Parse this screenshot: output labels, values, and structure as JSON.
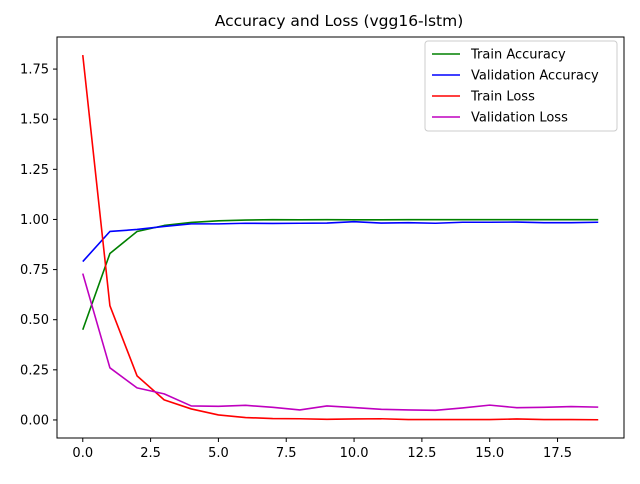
{
  "chart_data": {
    "type": "line",
    "title": "Accuracy and Loss (vgg16-lstm)",
    "xlabel": "",
    "ylabel": "",
    "xlim": [
      -0.95,
      19.95
    ],
    "ylim": [
      -0.09,
      1.91
    ],
    "grid": false,
    "legend_position": "top-right",
    "x": [
      0,
      1,
      2,
      3,
      4,
      5,
      6,
      7,
      8,
      9,
      10,
      11,
      12,
      13,
      14,
      15,
      16,
      17,
      18,
      19
    ],
    "x_ticks": [
      0.0,
      2.5,
      5.0,
      7.5,
      10.0,
      12.5,
      15.0,
      17.5
    ],
    "x_tick_labels": [
      "0.0",
      "2.5",
      "5.0",
      "7.5",
      "10.0",
      "12.5",
      "15.0",
      "17.5"
    ],
    "y_ticks": [
      0.0,
      0.25,
      0.5,
      0.75,
      1.0,
      1.25,
      1.5,
      1.75
    ],
    "y_tick_labels": [
      "0.00",
      "0.25",
      "0.50",
      "0.75",
      "1.00",
      "1.25",
      "1.50",
      "1.75"
    ],
    "series": [
      {
        "name": "Train Accuracy",
        "color": "#008000",
        "values": [
          0.45,
          0.83,
          0.94,
          0.97,
          0.985,
          0.993,
          0.997,
          0.999,
          0.998,
          0.999,
          0.998,
          0.998,
          0.999,
          0.999,
          0.999,
          0.999,
          0.999,
          0.999,
          0.999,
          0.999
        ]
      },
      {
        "name": "Validation Accuracy",
        "color": "#0000ff",
        "values": [
          0.79,
          0.94,
          0.95,
          0.965,
          0.978,
          0.978,
          0.981,
          0.98,
          0.981,
          0.982,
          0.989,
          0.982,
          0.984,
          0.981,
          0.986,
          0.986,
          0.987,
          0.984,
          0.984,
          0.986
        ]
      },
      {
        "name": "Train Loss",
        "color": "#ff0000",
        "values": [
          1.82,
          0.57,
          0.22,
          0.1,
          0.055,
          0.025,
          0.012,
          0.007,
          0.006,
          0.003,
          0.005,
          0.006,
          0.002,
          0.002,
          0.002,
          0.002,
          0.005,
          0.002,
          0.002,
          0.001
        ]
      },
      {
        "name": "Validation Loss",
        "color": "#bf00bf",
        "values": [
          0.73,
          0.26,
          0.16,
          0.13,
          0.07,
          0.068,
          0.073,
          0.063,
          0.05,
          0.07,
          0.062,
          0.053,
          0.05,
          0.048,
          0.06,
          0.074,
          0.061,
          0.063,
          0.067,
          0.064
        ]
      }
    ]
  }
}
